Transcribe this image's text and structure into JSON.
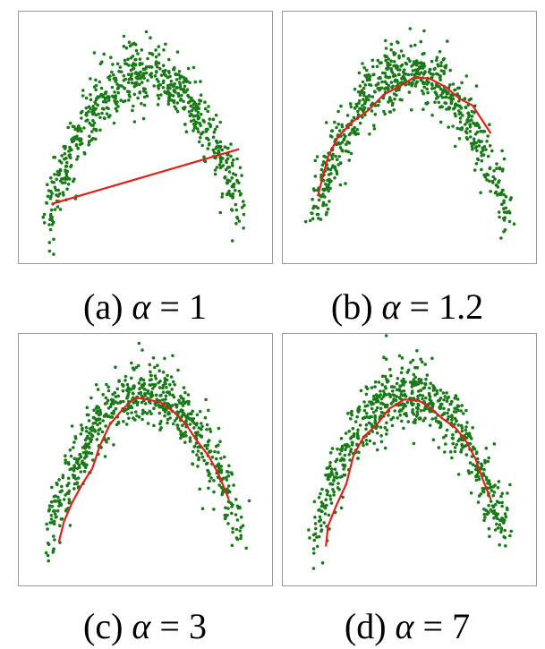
{
  "figure": {
    "point_color": "#1a7a1a",
    "curve_color": "#e0201a",
    "frame_color": "#9a9a9a",
    "panels": [
      {
        "id": "a",
        "label": "(a)",
        "symbol": "α",
        "relation": "=",
        "value": "1"
      },
      {
        "id": "b",
        "label": "(b)",
        "symbol": "α",
        "relation": "=",
        "value": "1.2"
      },
      {
        "id": "c",
        "label": "(c)",
        "symbol": "α",
        "relation": "=",
        "value": "3"
      },
      {
        "id": "d",
        "label": "(d)",
        "symbol": "α",
        "relation": "=",
        "value": "7"
      }
    ]
  },
  "chart_data": [
    {
      "type": "scatter",
      "panel": "a",
      "point_cloud": {
        "shape": "inverted-parabola",
        "count": 700,
        "noise": "gaussian"
      },
      "curve": [
        [
          -0.92,
          0.15
        ],
        [
          0.92,
          0.5
        ]
      ],
      "xlim": [
        -1.2,
        1.2
      ],
      "ylim": [
        -0.2,
        1.35
      ],
      "grid": false,
      "legend": "none"
    },
    {
      "type": "scatter",
      "panel": "b",
      "point_cloud": {
        "shape": "inverted-parabola",
        "count": 700,
        "noise": "gaussian"
      },
      "curve": [
        [
          -0.9,
          0.2
        ],
        [
          -0.8,
          0.45
        ],
        [
          -0.7,
          0.58
        ],
        [
          -0.55,
          0.68
        ],
        [
          -0.4,
          0.75
        ],
        [
          -0.25,
          0.85
        ],
        [
          -0.1,
          0.9
        ],
        [
          0.05,
          0.96
        ],
        [
          0.2,
          0.95
        ],
        [
          0.35,
          0.9
        ],
        [
          0.5,
          0.82
        ],
        [
          0.62,
          0.78
        ],
        [
          0.72,
          0.68
        ],
        [
          0.8,
          0.6
        ]
      ],
      "xlim": [
        -1.2,
        1.2
      ],
      "ylim": [
        -0.2,
        1.35
      ],
      "grid": false,
      "legend": "none"
    },
    {
      "type": "scatter",
      "panel": "c",
      "point_cloud": {
        "shape": "inverted-parabola",
        "count": 700,
        "noise": "gaussian"
      },
      "curve": [
        [
          -0.85,
          0.05
        ],
        [
          -0.8,
          0.18
        ],
        [
          -0.72,
          0.3
        ],
        [
          -0.62,
          0.42
        ],
        [
          -0.52,
          0.52
        ],
        [
          -0.45,
          0.66
        ],
        [
          -0.35,
          0.8
        ],
        [
          -0.22,
          0.9
        ],
        [
          -0.1,
          0.97
        ],
        [
          0.02,
          0.96
        ],
        [
          0.15,
          0.94
        ],
        [
          0.28,
          0.88
        ],
        [
          0.4,
          0.8
        ],
        [
          0.5,
          0.7
        ],
        [
          0.62,
          0.6
        ],
        [
          0.72,
          0.48
        ],
        [
          0.82,
          0.32
        ]
      ],
      "xlim": [
        -1.2,
        1.2
      ],
      "ylim": [
        -0.2,
        1.35
      ],
      "grid": false,
      "legend": "none"
    },
    {
      "type": "scatter",
      "panel": "d",
      "point_cloud": {
        "shape": "inverted-parabola",
        "count": 700,
        "noise": "gaussian"
      },
      "curve": [
        [
          -0.82,
          0.02
        ],
        [
          -0.8,
          0.15
        ],
        [
          -0.72,
          0.28
        ],
        [
          -0.62,
          0.42
        ],
        [
          -0.55,
          0.6
        ],
        [
          -0.45,
          0.72
        ],
        [
          -0.32,
          0.8
        ],
        [
          -0.2,
          0.9
        ],
        [
          -0.05,
          0.96
        ],
        [
          0.1,
          0.95
        ],
        [
          0.22,
          0.9
        ],
        [
          0.32,
          0.84
        ],
        [
          0.45,
          0.78
        ],
        [
          0.55,
          0.7
        ],
        [
          0.65,
          0.58
        ],
        [
          0.72,
          0.45
        ],
        [
          0.8,
          0.32
        ]
      ],
      "xlim": [
        -1.2,
        1.2
      ],
      "ylim": [
        -0.2,
        1.35
      ],
      "grid": false,
      "legend": "none"
    }
  ]
}
